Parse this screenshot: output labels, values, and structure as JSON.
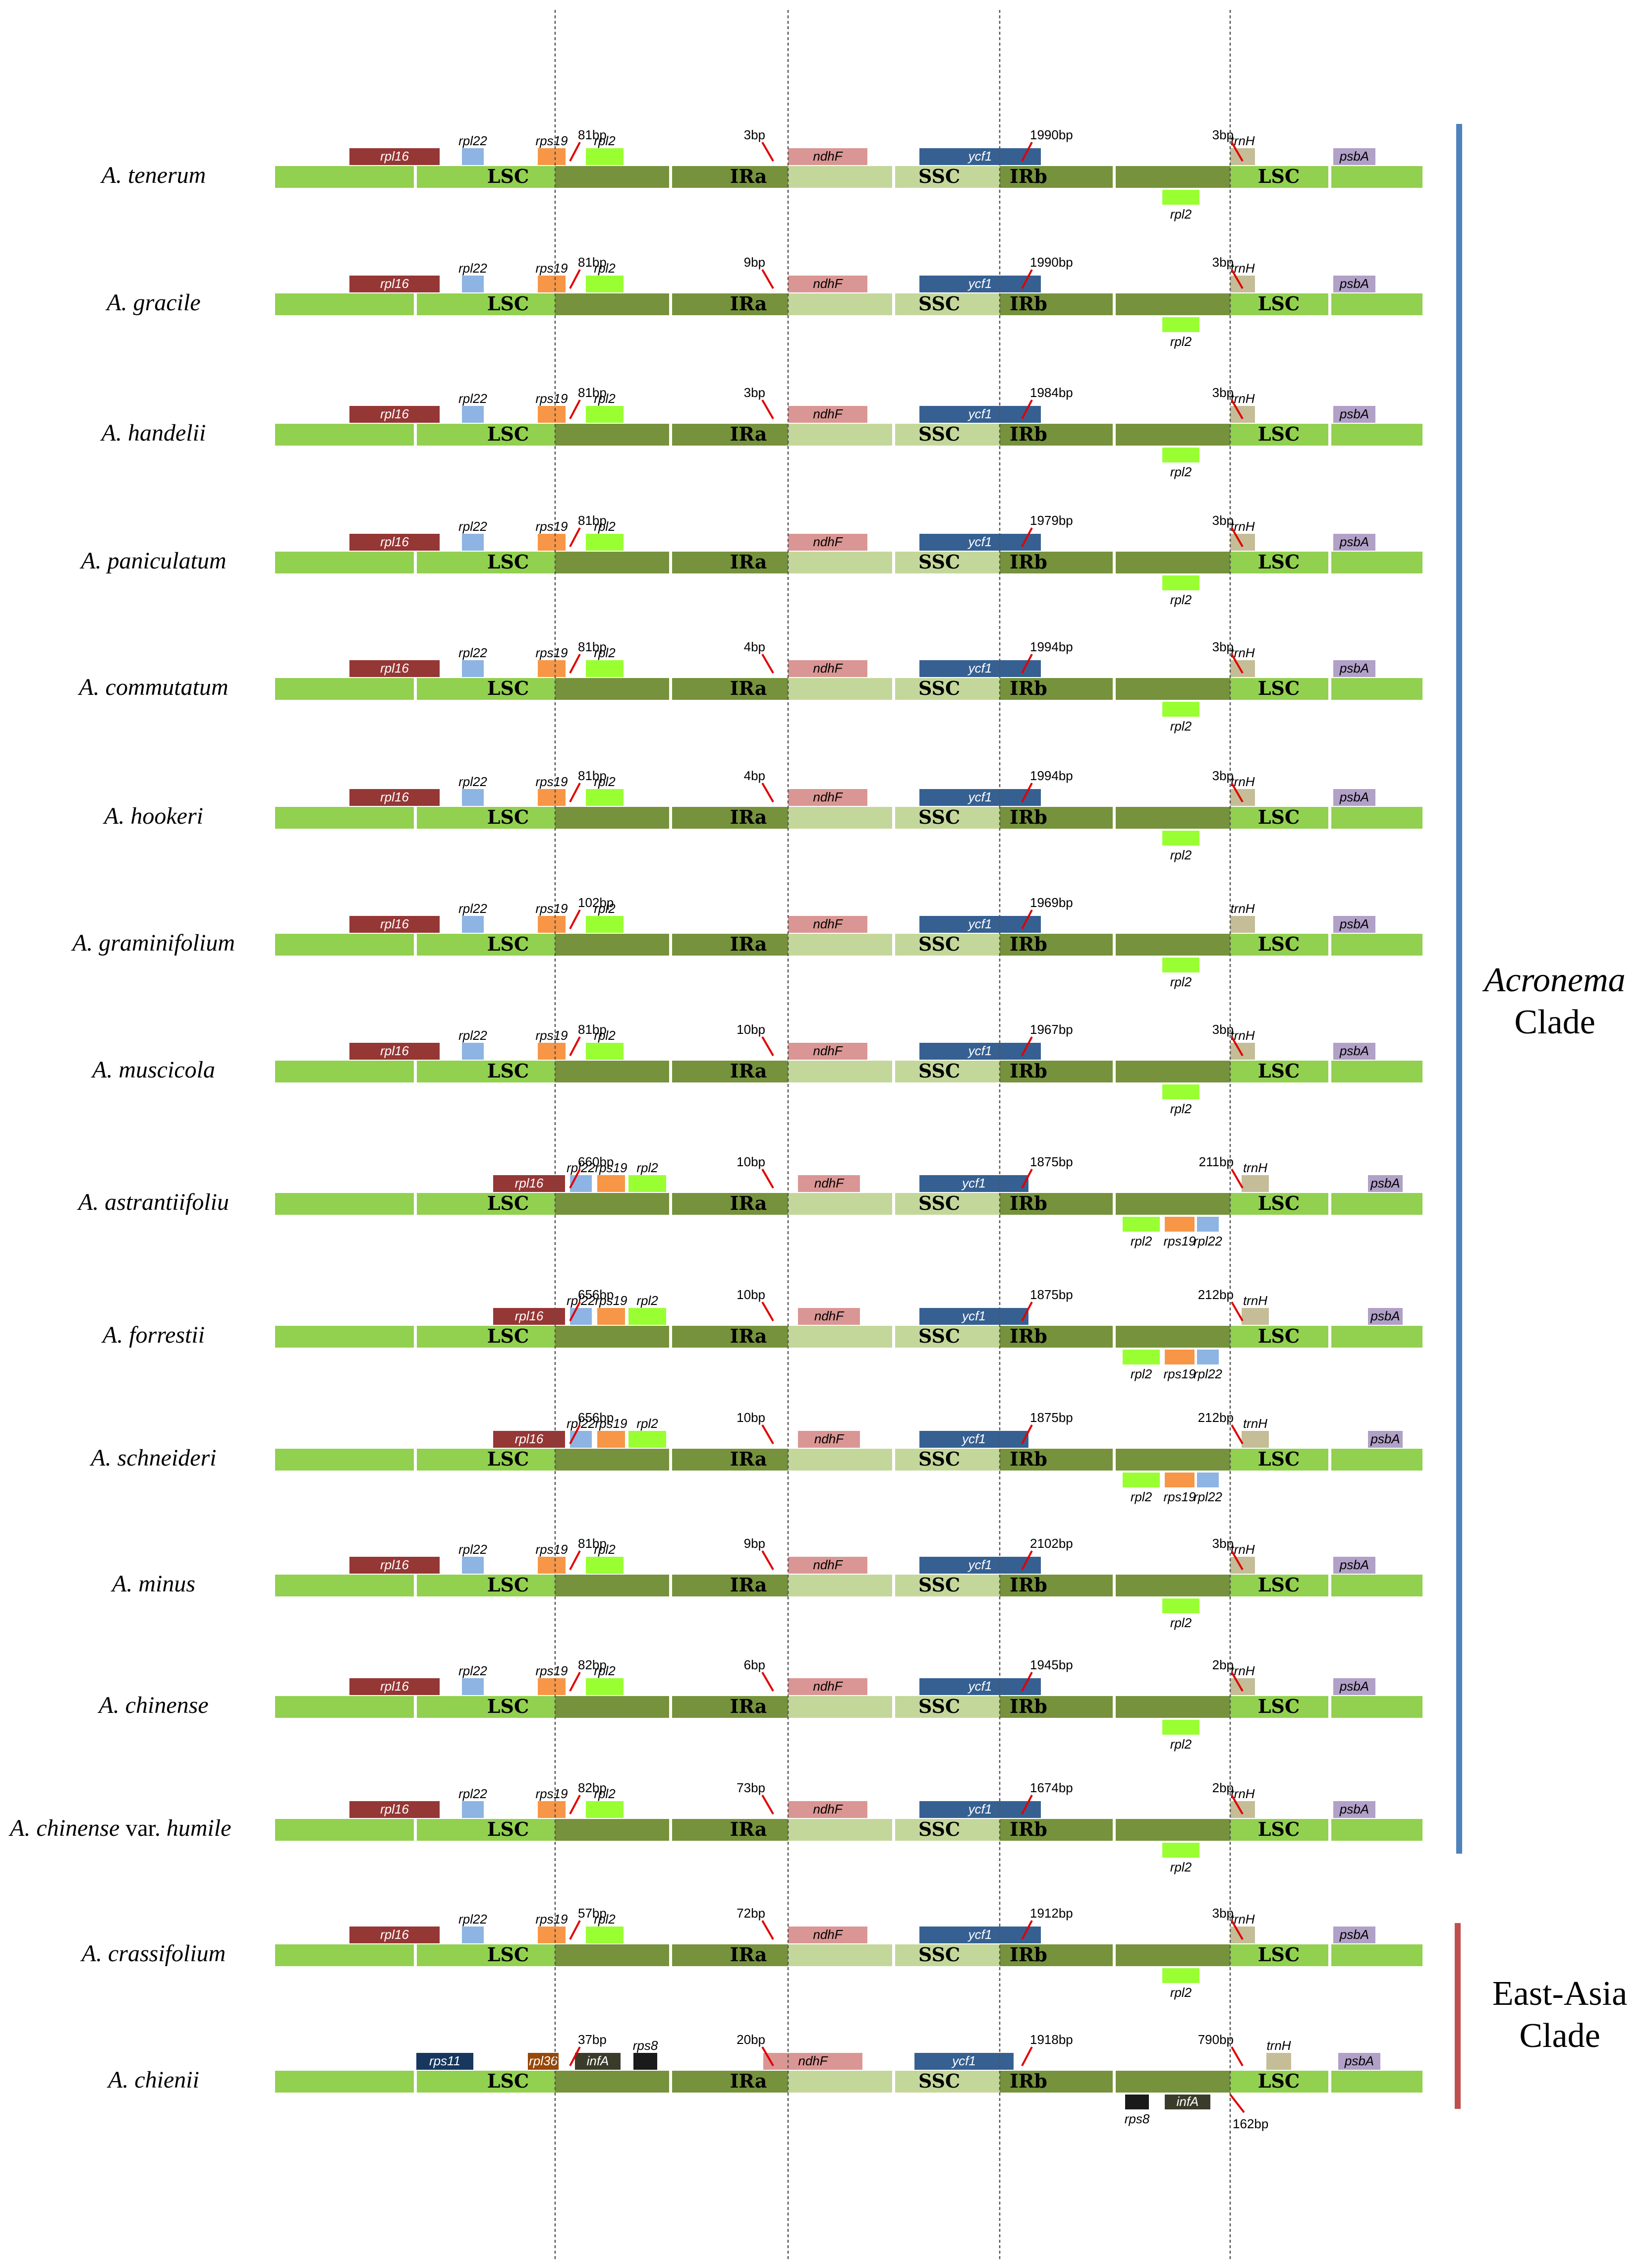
{
  "regions": [
    "LSC",
    "IRa",
    "SSC",
    "IRb",
    "LSC"
  ],
  "colors": {
    "LSC": "#92d050",
    "IR": "#76923c",
    "SSC": "#c4d79b",
    "rpl16": "#953735",
    "rpl22": "#8db4e2",
    "rps19": "#f79646",
    "rpl2": "#99ff33",
    "ndhF": "#da9694",
    "ycf1": "#366092",
    "trnH": "#c4bd97",
    "psbA": "#b1a0c7",
    "rps11": "#17375e",
    "rpl36": "#974706",
    "infA": "#3b3b2b",
    "rps8": "#1a1a1a",
    "bp_tick": "#e00000",
    "acronema_bar": "#4f81bd",
    "eastasia_bar": "#c0504d"
  },
  "species": [
    {
      "name": "A. tenerum",
      "upper": [
        [
          "rpl16",
          1
        ],
        [
          "rpl22",
          0
        ],
        [
          "rps19",
          0
        ],
        [
          "rpl2",
          0
        ],
        [
          "ndhF",
          1
        ],
        [
          "ycf1",
          1
        ],
        [
          "trnH",
          0
        ],
        [
          "psbA",
          1
        ]
      ],
      "lower": [
        [
          "rpl2",
          0
        ]
      ],
      "bp": [
        "81bp",
        "3bp",
        "1990bp",
        "3bp"
      ]
    },
    {
      "name": "A. gracile",
      "upper": [
        [
          "rpl16",
          1
        ],
        [
          "rpl22",
          0
        ],
        [
          "rps19",
          0
        ],
        [
          "rpl2",
          0
        ],
        [
          "ndhF",
          1
        ],
        [
          "ycf1",
          1
        ],
        [
          "trnH",
          0
        ],
        [
          "psbA",
          1
        ]
      ],
      "lower": [
        [
          "rpl2",
          0
        ]
      ],
      "bp": [
        "81bp",
        "9bp",
        "1990bp",
        "3bp"
      ]
    },
    {
      "name": "A. handelii",
      "upper": [
        [
          "rpl16",
          1
        ],
        [
          "rpl22",
          0
        ],
        [
          "rps19",
          0
        ],
        [
          "rpl2",
          0
        ],
        [
          "ndhF",
          1
        ],
        [
          "ycf1",
          1
        ],
        [
          "trnH",
          0
        ],
        [
          "psbA",
          1
        ]
      ],
      "lower": [
        [
          "rpl2",
          0
        ]
      ],
      "bp": [
        "81bp",
        "3bp",
        "1984bp",
        "3bp"
      ]
    },
    {
      "name": "A. paniculatum",
      "upper": [
        [
          "rpl16",
          1
        ],
        [
          "rpl22",
          0
        ],
        [
          "rps19",
          0
        ],
        [
          "rpl2",
          0
        ],
        [
          "ndhF",
          1
        ],
        [
          "ycf1",
          1
        ],
        [
          "trnH",
          0
        ],
        [
          "psbA",
          1
        ]
      ],
      "lower": [
        [
          "rpl2",
          0
        ]
      ],
      "bp": [
        "81bp",
        "",
        "1979bp",
        "3bp"
      ]
    },
    {
      "name": "A. commutatum",
      "upper": [
        [
          "rpl16",
          1
        ],
        [
          "rpl22",
          0
        ],
        [
          "rps19",
          0
        ],
        [
          "rpl2",
          0
        ],
        [
          "ndhF",
          1
        ],
        [
          "ycf1",
          1
        ],
        [
          "trnH",
          0
        ],
        [
          "psbA",
          1
        ]
      ],
      "lower": [
        [
          "rpl2",
          0
        ]
      ],
      "bp": [
        "81bp",
        "4bp",
        "1994bp",
        "3bp"
      ]
    },
    {
      "name": "A. hookeri",
      "upper": [
        [
          "rpl16",
          1
        ],
        [
          "rpl22",
          0
        ],
        [
          "rps19",
          0
        ],
        [
          "rpl2",
          0
        ],
        [
          "ndhF",
          1
        ],
        [
          "ycf1",
          1
        ],
        [
          "trnH",
          0
        ],
        [
          "psbA",
          1
        ]
      ],
      "lower": [
        [
          "rpl2",
          0
        ]
      ],
      "bp": [
        "81bp",
        "4bp",
        "1994bp",
        "3bp"
      ]
    },
    {
      "name": "A. graminifolium",
      "upper": [
        [
          "rpl16",
          1
        ],
        [
          "rpl22",
          0
        ],
        [
          "rps19",
          0
        ],
        [
          "rpl2",
          0
        ],
        [
          "ndhF",
          1
        ],
        [
          "ycf1",
          1
        ],
        [
          "trnH",
          0
        ],
        [
          "psbA",
          1
        ]
      ],
      "lower": [
        [
          "rpl2",
          0
        ]
      ],
      "bp": [
        "102bp",
        "",
        "1969bp",
        ""
      ]
    },
    {
      "name": "A. muscicola",
      "upper": [
        [
          "rpl16",
          1
        ],
        [
          "rpl22",
          0
        ],
        [
          "rps19",
          0
        ],
        [
          "rpl2",
          0
        ],
        [
          "ndhF",
          1
        ],
        [
          "ycf1",
          1
        ],
        [
          "trnH",
          0
        ],
        [
          "psbA",
          1
        ]
      ],
      "lower": [
        [
          "rpl2",
          0
        ]
      ],
      "bp": [
        "81bp",
        "10bp",
        "1967bp",
        "3bp"
      ]
    },
    {
      "name": "A. astrantiifoliu",
      "upper": [
        [
          "rpl16",
          1
        ],
        [
          "rpl22",
          0
        ],
        [
          "rps19",
          0
        ],
        [
          "rpl2",
          0
        ],
        [
          "ndhF",
          1
        ],
        [
          "ycf1",
          1
        ],
        [
          "trnH",
          0
        ],
        [
          "psbA",
          1
        ]
      ],
      "lower": [
        [
          "rpl2",
          0
        ],
        [
          "rps19",
          0
        ],
        [
          "rpl22",
          0
        ]
      ],
      "bp": [
        "660bp",
        "10bp",
        "1875bp",
        "211bp"
      ]
    },
    {
      "name": "A. forrestii",
      "upper": [
        [
          "rpl16",
          1
        ],
        [
          "rpl22",
          0
        ],
        [
          "rps19",
          0
        ],
        [
          "rpl2",
          0
        ],
        [
          "ndhF",
          1
        ],
        [
          "ycf1",
          1
        ],
        [
          "trnH",
          0
        ],
        [
          "psbA",
          1
        ]
      ],
      "lower": [
        [
          "rpl2",
          0
        ],
        [
          "rps19",
          0
        ],
        [
          "rpl22",
          0
        ]
      ],
      "bp": [
        "656bp",
        "10bp",
        "1875bp",
        "212bp"
      ]
    },
    {
      "name": "A. schneideri",
      "upper": [
        [
          "rpl16",
          1
        ],
        [
          "rpl22",
          0
        ],
        [
          "rps19",
          0
        ],
        [
          "rpl2",
          0
        ],
        [
          "ndhF",
          1
        ],
        [
          "ycf1",
          1
        ],
        [
          "trnH",
          0
        ],
        [
          "psbA",
          1
        ]
      ],
      "lower": [
        [
          "rpl2",
          0
        ],
        [
          "rps19",
          0
        ],
        [
          "rpl22",
          0
        ]
      ],
      "bp": [
        "656bp",
        "10bp",
        "1875bp",
        "212bp"
      ]
    },
    {
      "name": "A. minus",
      "upper": [
        [
          "rpl16",
          1
        ],
        [
          "rpl22",
          0
        ],
        [
          "rps19",
          0
        ],
        [
          "rpl2",
          0
        ],
        [
          "ndhF",
          1
        ],
        [
          "ycf1",
          1
        ],
        [
          "trnH",
          0
        ],
        [
          "psbA",
          1
        ]
      ],
      "lower": [
        [
          "rpl2",
          0
        ]
      ],
      "bp": [
        "81bp",
        "9bp",
        "2102bp",
        "3bp"
      ]
    },
    {
      "name": "A. chinense",
      "upper": [
        [
          "rpl16",
          1
        ],
        [
          "rpl22",
          0
        ],
        [
          "rps19",
          0
        ],
        [
          "rpl2",
          0
        ],
        [
          "ndhF",
          1
        ],
        [
          "ycf1",
          1
        ],
        [
          "trnH",
          0
        ],
        [
          "psbA",
          1
        ]
      ],
      "lower": [
        [
          "rpl2",
          0
        ]
      ],
      "bp": [
        "82bp",
        "6bp",
        "1945bp",
        "2bp"
      ]
    },
    {
      "name": "A. chinense",
      "name_suffix": "var.",
      "name_tail": "humile",
      "upper": [
        [
          "rpl16",
          1
        ],
        [
          "rpl22",
          0
        ],
        [
          "rps19",
          0
        ],
        [
          "rpl2",
          0
        ],
        [
          "ndhF",
          1
        ],
        [
          "ycf1",
          1
        ],
        [
          "trnH",
          0
        ],
        [
          "psbA",
          1
        ]
      ],
      "lower": [
        [
          "rpl2",
          0
        ]
      ],
      "bp": [
        "82bp",
        "73bp",
        "1674bp",
        "2bp"
      ]
    },
    {
      "name": "A. crassifolium",
      "upper": [
        [
          "rpl16",
          1
        ],
        [
          "rpl22",
          0
        ],
        [
          "rps19",
          0
        ],
        [
          "rpl2",
          0
        ],
        [
          "ndhF",
          1
        ],
        [
          "ycf1",
          1
        ],
        [
          "trnH",
          0
        ],
        [
          "psbA",
          1
        ]
      ],
      "lower": [
        [
          "rpl2",
          0
        ]
      ],
      "bp": [
        "57bp",
        "72bp",
        "1912bp",
        "3bp"
      ]
    },
    {
      "name": "A. chienii",
      "upper": [
        [
          "rps11",
          1
        ],
        [
          "rpl36",
          1
        ],
        [
          "infA",
          1
        ],
        [
          "rps8",
          0
        ],
        [
          "ndhF",
          1
        ],
        [
          "ycf1",
          1
        ],
        [
          "trnH",
          0
        ],
        [
          "psbA",
          1
        ]
      ],
      "lower": [
        [
          "rps8",
          0
        ],
        [
          "infA",
          1
        ]
      ],
      "bp": [
        "37bp",
        "20bp",
        "1918bp",
        "790bp",
        "162bp"
      ]
    }
  ],
  "clades": [
    {
      "name_italic": "Acronema",
      "name_plain": "Clade"
    },
    {
      "name_italic": "",
      "name_plain": "East-Asia",
      "name_plain2": "Clade"
    }
  ]
}
